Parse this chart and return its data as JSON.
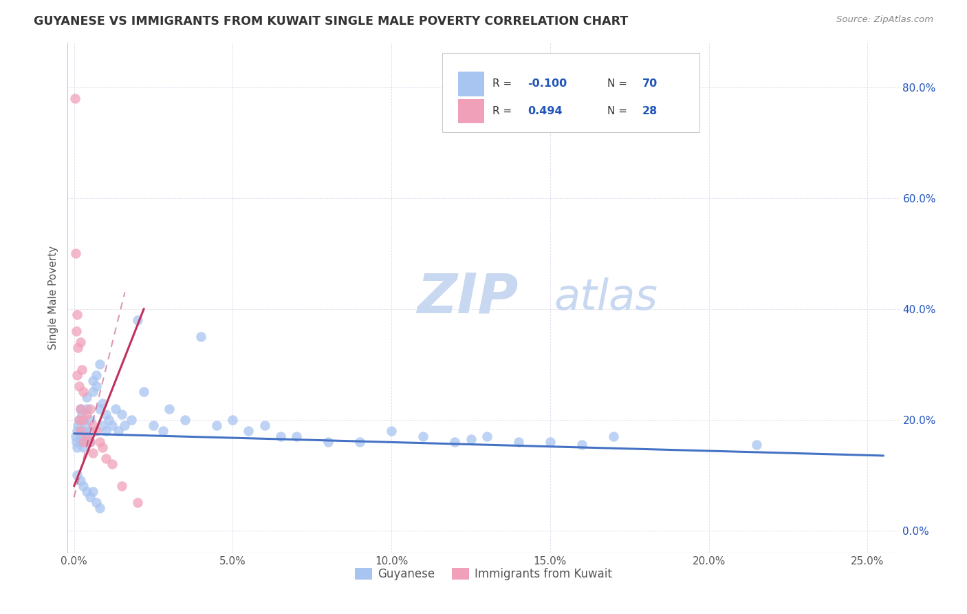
{
  "title": "GUYANESE VS IMMIGRANTS FROM KUWAIT SINGLE MALE POVERTY CORRELATION CHART",
  "source": "Source: ZipAtlas.com",
  "xlabel_ticks": [
    "0.0%",
    "5.0%",
    "10.0%",
    "15.0%",
    "20.0%",
    "25.0%"
  ],
  "xlabel_vals": [
    0.0,
    0.05,
    0.1,
    0.15,
    0.2,
    0.25
  ],
  "ylabel_ticks": [
    "0.0%",
    "20.0%",
    "40.0%",
    "60.0%",
    "80.0%"
  ],
  "ylabel_vals": [
    0.0,
    0.2,
    0.4,
    0.6,
    0.8
  ],
  "ylabel_label": "Single Male Poverty",
  "legend_label1": "Guyanese",
  "legend_label2": "Immigrants from Kuwait",
  "r1": "-0.100",
  "n1": "70",
  "r2": "0.494",
  "n2": "28",
  "color_blue": "#a8c4f0",
  "color_pink": "#f0a0b8",
  "trendline1_color": "#4472c4",
  "trendline2_color": "#c0305a",
  "watermark_zip": "ZIP",
  "watermark_atlas": "atlas",
  "watermark_color_zip": "#c8d8f0",
  "watermark_color_atlas": "#c8d8f0",
  "legend_r_color": "#2255bb",
  "legend_n_color": "#2255bb",
  "xlim": [
    -0.002,
    0.26
  ],
  "ylim": [
    -0.04,
    0.88
  ],
  "guyanese_x": [
    0.0005,
    0.0008,
    0.001,
    0.001,
    0.0012,
    0.0015,
    0.002,
    0.002,
    0.002,
    0.0025,
    0.003,
    0.003,
    0.003,
    0.0035,
    0.004,
    0.004,
    0.004,
    0.005,
    0.005,
    0.005,
    0.006,
    0.006,
    0.007,
    0.007,
    0.008,
    0.008,
    0.009,
    0.009,
    0.01,
    0.01,
    0.011,
    0.012,
    0.013,
    0.014,
    0.015,
    0.016,
    0.018,
    0.02,
    0.022,
    0.025,
    0.028,
    0.03,
    0.035,
    0.04,
    0.045,
    0.05,
    0.055,
    0.06,
    0.065,
    0.07,
    0.08,
    0.09,
    0.1,
    0.11,
    0.12,
    0.13,
    0.14,
    0.15,
    0.16,
    0.17,
    0.001,
    0.002,
    0.003,
    0.004,
    0.005,
    0.006,
    0.007,
    0.008,
    0.215,
    0.125
  ],
  "guyanese_y": [
    0.17,
    0.16,
    0.18,
    0.15,
    0.19,
    0.2,
    0.17,
    0.22,
    0.16,
    0.21,
    0.18,
    0.2,
    0.15,
    0.19,
    0.22,
    0.17,
    0.24,
    0.18,
    0.2,
    0.16,
    0.25,
    0.27,
    0.28,
    0.26,
    0.3,
    0.22,
    0.23,
    0.19,
    0.21,
    0.18,
    0.2,
    0.19,
    0.22,
    0.18,
    0.21,
    0.19,
    0.2,
    0.38,
    0.25,
    0.19,
    0.18,
    0.22,
    0.2,
    0.35,
    0.19,
    0.2,
    0.18,
    0.19,
    0.17,
    0.17,
    0.16,
    0.16,
    0.18,
    0.17,
    0.16,
    0.17,
    0.16,
    0.16,
    0.155,
    0.17,
    0.1,
    0.09,
    0.08,
    0.07,
    0.06,
    0.07,
    0.05,
    0.04,
    0.155,
    0.165
  ],
  "kuwait_x": [
    0.0003,
    0.0005,
    0.0008,
    0.001,
    0.001,
    0.0012,
    0.0015,
    0.0015,
    0.002,
    0.002,
    0.002,
    0.0025,
    0.003,
    0.003,
    0.003,
    0.004,
    0.004,
    0.005,
    0.005,
    0.006,
    0.006,
    0.007,
    0.008,
    0.009,
    0.01,
    0.012,
    0.015,
    0.02
  ],
  "kuwait_y": [
    0.78,
    0.5,
    0.36,
    0.39,
    0.28,
    0.33,
    0.26,
    0.2,
    0.34,
    0.22,
    0.18,
    0.29,
    0.25,
    0.2,
    0.16,
    0.21,
    0.17,
    0.22,
    0.16,
    0.19,
    0.14,
    0.18,
    0.16,
    0.15,
    0.13,
    0.12,
    0.08,
    0.05
  ],
  "trendline1_x": [
    0.0,
    0.255
  ],
  "trendline1_y": [
    0.175,
    0.135
  ],
  "trendline2_x": [
    0.0,
    0.022
  ],
  "trendline2_y": [
    0.08,
    0.4
  ]
}
